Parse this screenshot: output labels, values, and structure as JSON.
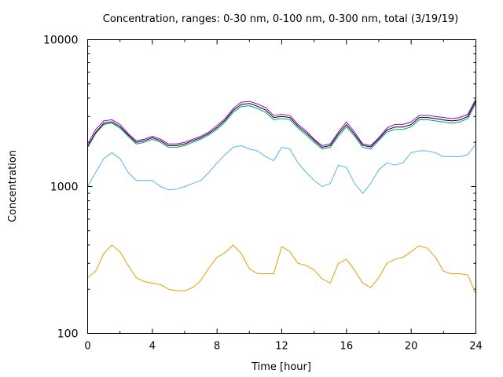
{
  "chart_data": {
    "type": "line",
    "title": "Concentration, ranges: 0-30 nm, 0-100 nm, 0-300 nm, total (3/19/19)",
    "xlabel": "Time [hour]",
    "ylabel": "Concentration",
    "xlim": [
      0,
      24
    ],
    "ylim": [
      100,
      10000
    ],
    "y_scale": "log",
    "grid": false,
    "legend": "none",
    "x_ticks": [
      0,
      4,
      8,
      12,
      16,
      20,
      24
    ],
    "x_tick_labels": [
      "0",
      "4",
      "8",
      "12",
      "16",
      "20",
      "24"
    ],
    "y_ticks": [
      100,
      1000,
      10000
    ],
    "y_tick_labels": [
      "100",
      "1000",
      "10000"
    ],
    "x": [
      0,
      0.5,
      1,
      1.5,
      2,
      2.5,
      3,
      3.5,
      4,
      4.5,
      5,
      5.5,
      6,
      6.5,
      7,
      7.5,
      8,
      8.5,
      9,
      9.5,
      10,
      10.5,
      11,
      11.5,
      12,
      12.5,
      13,
      13.5,
      14,
      14.5,
      15,
      15.5,
      16,
      16.5,
      17,
      17.5,
      18,
      18.5,
      19,
      19.5,
      20,
      20.5,
      21,
      21.5,
      22,
      22.5,
      23,
      23.5,
      24
    ],
    "series": [
      {
        "color": "#e69f00",
        "values": [
          240,
          265,
          350,
          400,
          360,
          290,
          240,
          225,
          220,
          215,
          200,
          195,
          195,
          205,
          230,
          280,
          330,
          355,
          400,
          350,
          275,
          255,
          255,
          255,
          390,
          360,
          300,
          290,
          270,
          235,
          220,
          300,
          320,
          270,
          220,
          205,
          240,
          300,
          320,
          330,
          360,
          395,
          380,
          330,
          265,
          255,
          255,
          250,
          185
        ]
      },
      {
        "color": "#56b4e9",
        "values": [
          1000,
          1250,
          1550,
          1700,
          1550,
          1250,
          1100,
          1100,
          1100,
          1000,
          950,
          960,
          1000,
          1050,
          1100,
          1250,
          1450,
          1650,
          1850,
          1900,
          1800,
          1750,
          1600,
          1500,
          1850,
          1800,
          1450,
          1250,
          1100,
          1000,
          1050,
          1400,
          1350,
          1050,
          900,
          1050,
          1300,
          1450,
          1400,
          1450,
          1700,
          1750,
          1750,
          1700,
          1600,
          1600,
          1600,
          1650,
          1950
        ]
      },
      {
        "color": "#009e73",
        "values": [
          1850,
          2300,
          2650,
          2700,
          2500,
          2200,
          1950,
          2000,
          2100,
          2000,
          1850,
          1850,
          1900,
          2000,
          2100,
          2250,
          2450,
          2750,
          3200,
          3500,
          3550,
          3400,
          3200,
          2850,
          2900,
          2850,
          2500,
          2250,
          2000,
          1800,
          1850,
          2200,
          2550,
          2200,
          1850,
          1800,
          2050,
          2350,
          2450,
          2450,
          2550,
          2850,
          2850,
          2800,
          2750,
          2700,
          2750,
          2900,
          3700
        ]
      },
      {
        "color": "#000000",
        "values": [
          1870,
          2340,
          2700,
          2760,
          2560,
          2250,
          2000,
          2050,
          2150,
          2050,
          1900,
          1900,
          1950,
          2050,
          2150,
          2300,
          2520,
          2830,
          3300,
          3620,
          3680,
          3520,
          3320,
          2950,
          3000,
          2950,
          2580,
          2320,
          2060,
          1850,
          1900,
          2280,
          2640,
          2270,
          1910,
          1860,
          2110,
          2430,
          2540,
          2540,
          2640,
          2950,
          2950,
          2900,
          2840,
          2800,
          2840,
          3000,
          3830
        ]
      },
      {
        "color": "#9400d3",
        "values": [
          1950,
          2450,
          2800,
          2850,
          2650,
          2300,
          2050,
          2100,
          2200,
          2100,
          1950,
          1950,
          2000,
          2100,
          2200,
          2350,
          2600,
          2900,
          3400,
          3750,
          3800,
          3650,
          3450,
          3050,
          3100,
          3050,
          2650,
          2400,
          2100,
          1900,
          1950,
          2350,
          2750,
          2350,
          1950,
          1900,
          2150,
          2500,
          2650,
          2650,
          2750,
          3050,
          3050,
          3000,
          2950,
          2900,
          2950,
          3100,
          3950
        ]
      }
    ]
  }
}
